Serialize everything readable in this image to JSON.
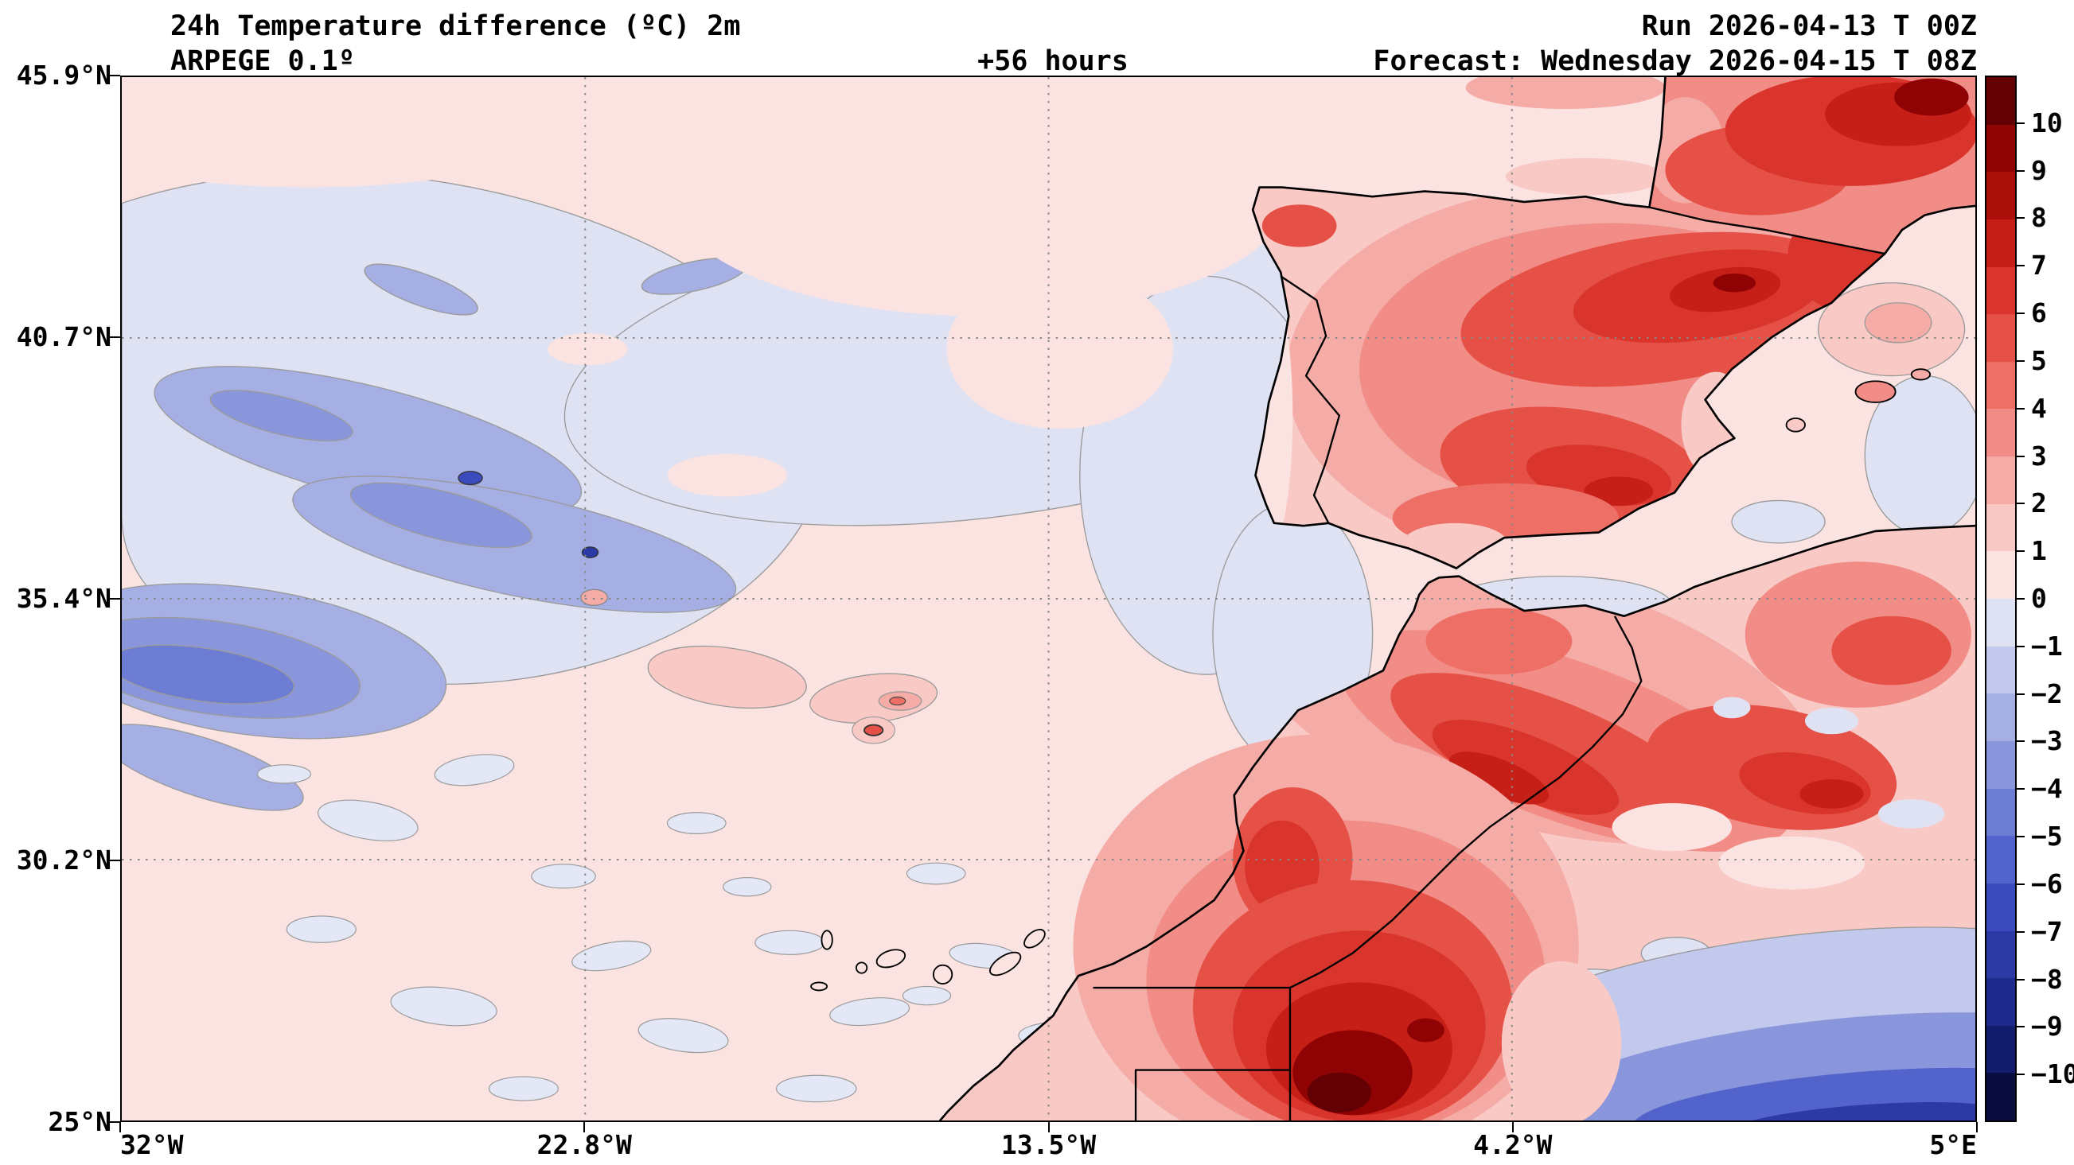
{
  "header": {
    "title": "24h Temperature difference (ºC) 2m",
    "model": "ARPEGE 0.1º",
    "lead_time": "+56 hours",
    "run": "Run 2026-04-13 T 00Z",
    "forecast": "Forecast: Wednesday 2026-04-15 T 08Z"
  },
  "chart_data": {
    "type": "heatmap",
    "title": "24h Temperature difference (ºC) 2m",
    "model": "ARPEGE 0.1º",
    "lead_time_hours": 56,
    "run": "2026-04-13 T 00Z",
    "valid": "Wednesday 2026-04-15 T 08Z",
    "grid": true,
    "x_axis": {
      "label": "longitude",
      "ticks": [
        "32°W",
        "22.8°W",
        "13.5°W",
        "4.2°W",
        "5°E"
      ],
      "range_deg_east": [
        -32,
        5
      ]
    },
    "y_axis": {
      "label": "latitude",
      "ticks": [
        "45.9°N",
        "40.7°N",
        "35.4°N",
        "30.2°N",
        "25°N"
      ],
      "range_deg_north": [
        25,
        45.9
      ]
    },
    "colorbar": {
      "unit": "ºC",
      "extend": "both",
      "tick_labels": [
        "10",
        "9",
        "8",
        "7",
        "6",
        "5",
        "4",
        "3",
        "2",
        "1",
        "0",
        "−1",
        "−2",
        "−3",
        "−4",
        "−5",
        "−6",
        "−7",
        "−8",
        "−9",
        "−10"
      ],
      "segment_colors": [
        "#630004",
        "#8f0304",
        "#ab0f09",
        "#c51f17",
        "#da352c",
        "#e65147",
        "#ed6f66",
        "#f18d86",
        "#f5aba6",
        "#f8c9c5",
        "#fbe3e1",
        "#dfe2f3",
        "#c3c9ec",
        "#a6afe4",
        "#8a96dc",
        "#6e7dd4",
        "#5264cb",
        "#3a4cbd",
        "#2c3aa5",
        "#1f2a8d",
        "#141c6e",
        "#0a0e3f"
      ]
    },
    "features": [
      "Strong positive anomaly (+4 to >10 ºC) over interior Spain, the Atlas mountains and southern Morocco / Western Sahara",
      "Maximum warming (>10 ºC, dark maroon) near the Western Sahara coast around 24–26°N",
      "Cooling band (−2 to −10 ºC, blue) across the south-eastern corner of the domain (southern Algeria)",
      "Weak cooling streaks (−1 to −5 ºC) over the mid-Atlantic north-west of Madeira around 33–38°N, 22–31°W",
      "Near-neutral change (0 to +1 ºC, pale pink) over most of the remaining ocean"
    ]
  }
}
